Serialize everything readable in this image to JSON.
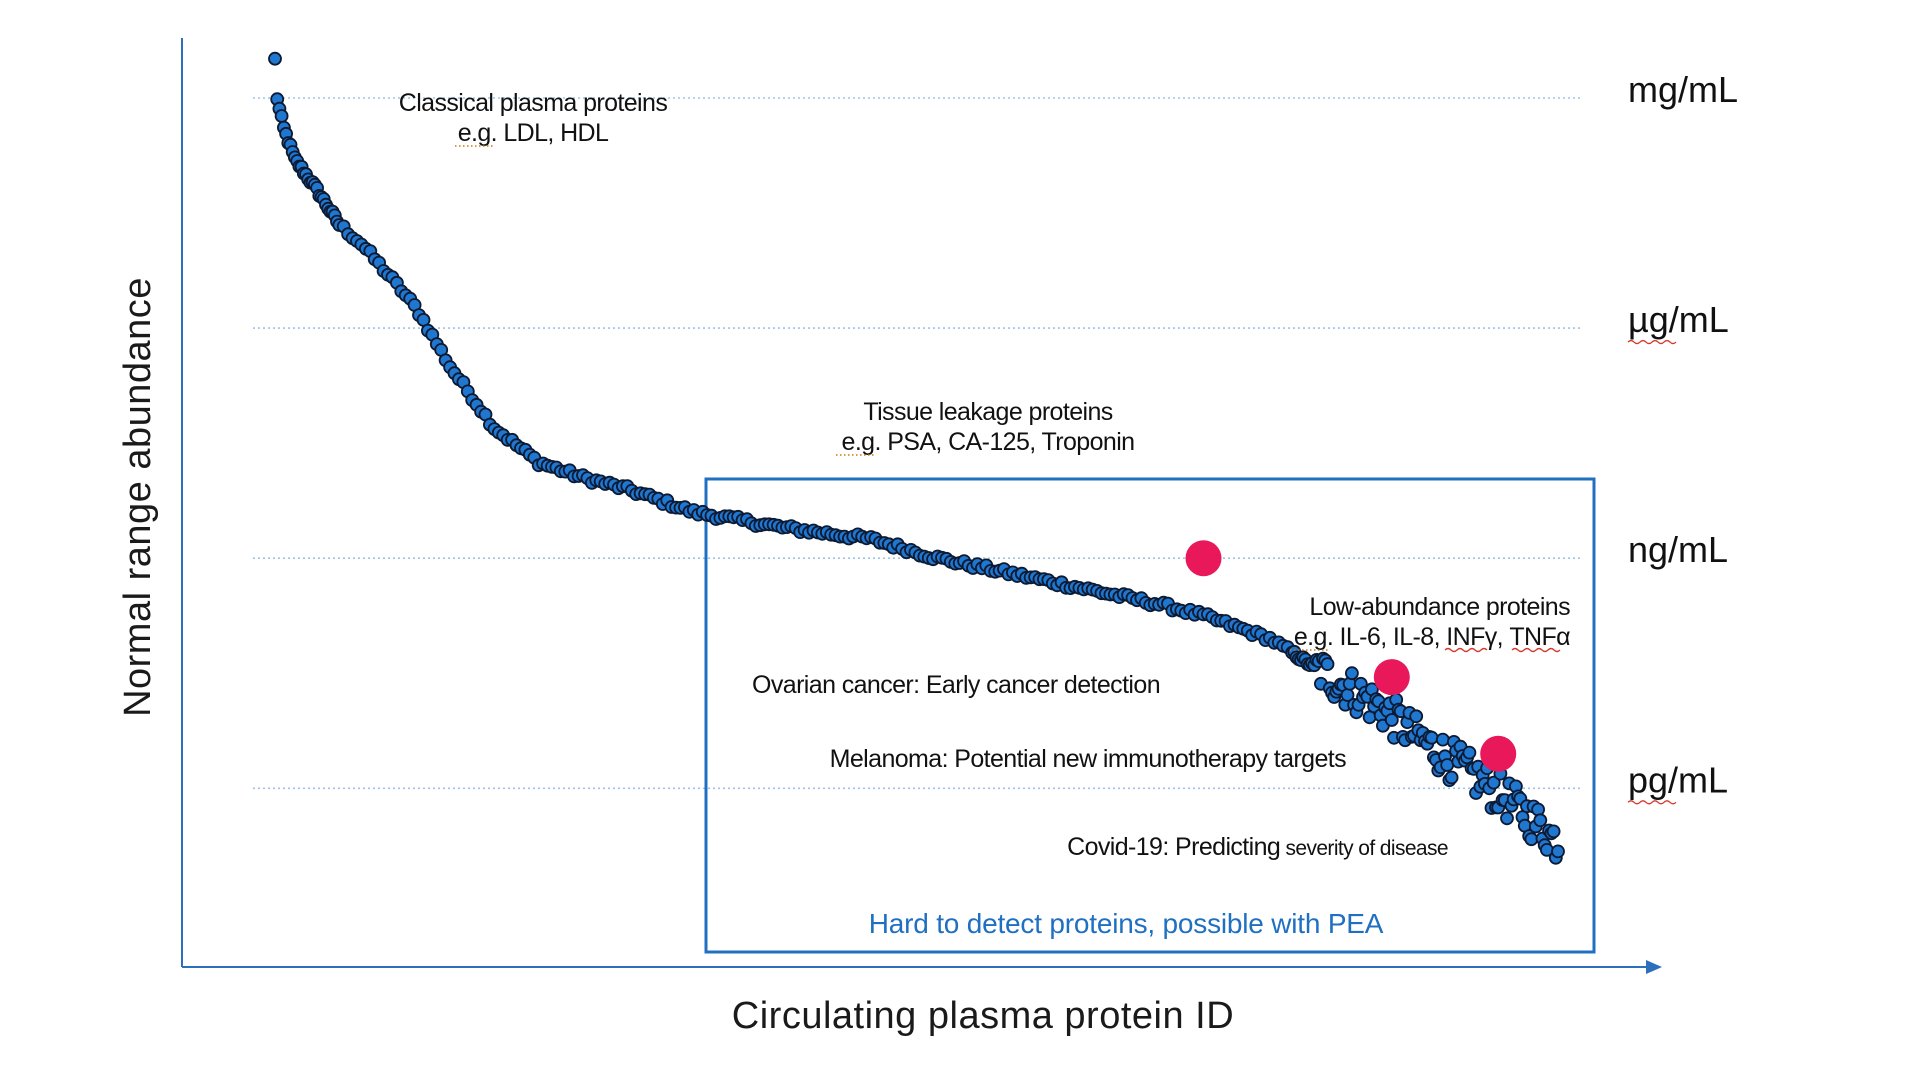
{
  "chart_data": {
    "type": "scatter",
    "xlabel": "Circulating plasma protein ID",
    "ylabel": "Normal range abundance",
    "y_scale": "log",
    "y_unit_labels": [
      {
        "label": "mg/mL",
        "exponent": 0
      },
      {
        "label": "µg/mL",
        "exponent": -3
      },
      {
        "label": "ng/mL",
        "exponent": -6
      },
      {
        "label": "pg/mL",
        "exponent": -9
      }
    ],
    "grid": "dotted horizontal lines at unit levels",
    "point_color": "#1f77d0",
    "point_stroke": "#0d1a33",
    "highlight_color": "#e8185a",
    "box_color": "#1f6fc2",
    "series_anchor_points": [
      [
        1,
        0.5
      ],
      [
        2,
        0.0
      ],
      [
        3,
        -0.15
      ],
      [
        5,
        -0.4
      ],
      [
        10,
        -0.8
      ],
      [
        20,
        -1.2
      ],
      [
        30,
        -1.65
      ],
      [
        40,
        -1.9
      ],
      [
        55,
        -2.4
      ],
      [
        65,
        -2.75
      ],
      [
        80,
        -3.5
      ],
      [
        100,
        -4.3
      ],
      [
        120,
        -4.75
      ],
      [
        140,
        -4.95
      ],
      [
        160,
        -5.1
      ],
      [
        190,
        -5.4
      ],
      [
        230,
        -5.6
      ],
      [
        270,
        -5.75
      ],
      [
        300,
        -6.0
      ],
      [
        350,
        -6.3
      ],
      [
        400,
        -6.6
      ],
      [
        420,
        -6.75
      ],
      [
        450,
        -7.05
      ],
      [
        480,
        -7.6
      ],
      [
        500,
        -7.95
      ],
      [
        515,
        -8.3
      ],
      [
        540,
        -8.8
      ],
      [
        555,
        -9.1
      ],
      [
        570,
        -9.45
      ],
      [
        580,
        -9.7
      ]
    ],
    "series_count": 580,
    "annotations": [
      {
        "line1": "Classical plasma proteins",
        "line2_prefix": "e.g.",
        "line2_rest": " LDL, HDL"
      },
      {
        "line1": "Tissue leakage proteins",
        "line2_prefix": "e.g.",
        "line2_rest": " PSA, CA-125, Troponin"
      },
      {
        "line1": "Low-abundance proteins",
        "line2_prefix": "e.g.",
        "line2_rest": " IL-6, IL-8, ",
        "line2_tail": [
          "INFγ",
          ", ",
          "TNFα"
        ]
      }
    ],
    "highlights": [
      {
        "label": "Ovarian cancer: Early cancer detection",
        "x": 420,
        "y": -6.0
      },
      {
        "label": "Melanoma: Potential new immunotherapy targets",
        "x": 505,
        "y": -7.55
      },
      {
        "label_main": "Covid-19: Predicting",
        "label_small": " severity of disease",
        "x": 553,
        "y": -8.55
      }
    ],
    "box_caption": "Hard to detect proteins, possible with PEA"
  }
}
